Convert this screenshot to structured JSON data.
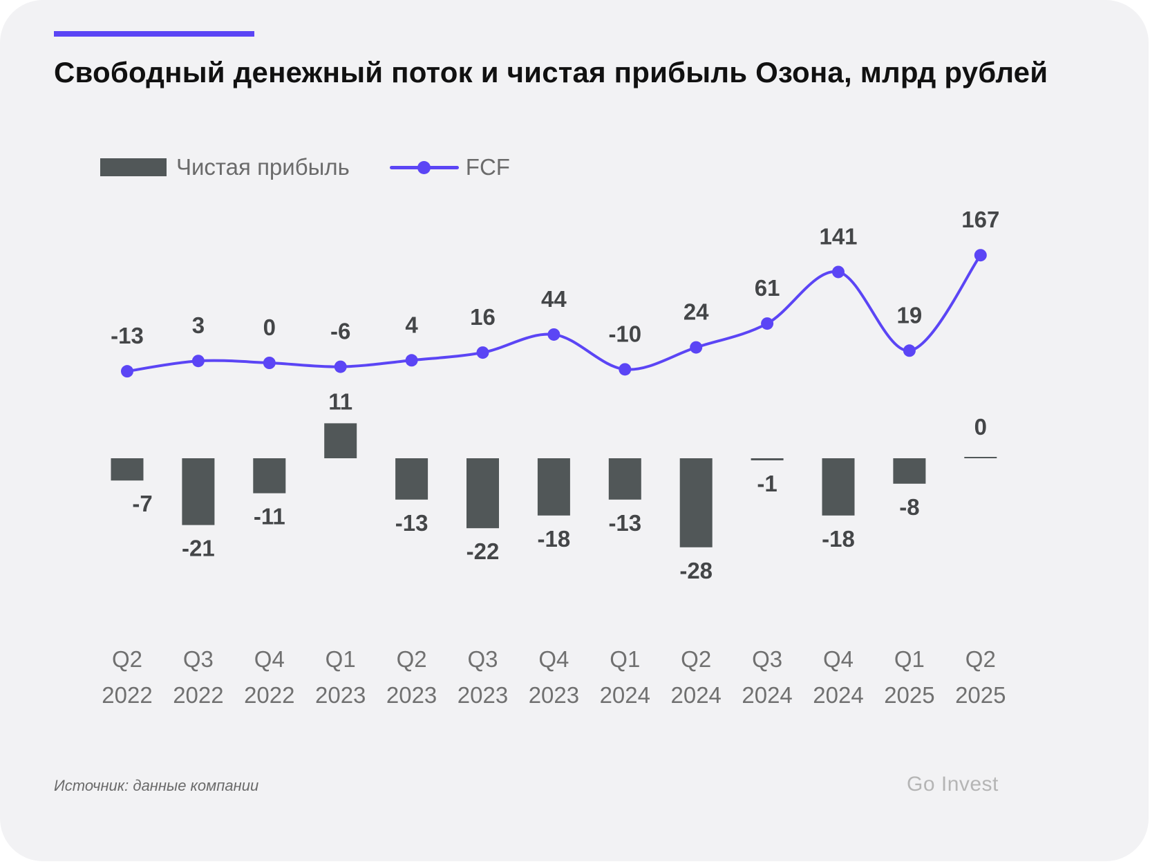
{
  "title": "Свободный денежный поток и чистая прибыль Озона, млрд рублей",
  "legend": {
    "net_profit": "Чистая прибыль",
    "fcf": "FCF"
  },
  "colors": {
    "accent": "#5b45f5",
    "bar": "#515758",
    "background": "#f2f2f4",
    "value_label": "#444648",
    "tick_label": "#707070"
  },
  "source": "Источник: данные компании",
  "brand": "Go Invest",
  "chart_data": {
    "type": "bar+line",
    "title": "Свободный денежный поток и чистая прибыль Озона, млрд рублей",
    "xlabel": "",
    "ylabel": "",
    "grid": false,
    "legend_position": "top-left",
    "categories": [
      {
        "quarter": "Q2",
        "year": "2022"
      },
      {
        "quarter": "Q3",
        "year": "2022"
      },
      {
        "quarter": "Q4",
        "year": "2022"
      },
      {
        "quarter": "Q1",
        "year": "2023"
      },
      {
        "quarter": "Q2",
        "year": "2023"
      },
      {
        "quarter": "Q3",
        "year": "2023"
      },
      {
        "quarter": "Q4",
        "year": "2023"
      },
      {
        "quarter": "Q1",
        "year": "2024"
      },
      {
        "quarter": "Q2",
        "year": "2024"
      },
      {
        "quarter": "Q3",
        "year": "2024"
      },
      {
        "quarter": "Q4",
        "year": "2024"
      },
      {
        "quarter": "Q1",
        "year": "2025"
      },
      {
        "quarter": "Q2",
        "year": "2025"
      }
    ],
    "series": [
      {
        "name": "Чистая прибыль",
        "type": "bar",
        "values": [
          -7,
          -21,
          -11,
          11,
          -13,
          -22,
          -18,
          -13,
          -28,
          -1,
          -18,
          -8,
          0
        ],
        "labels": [
          "-7",
          "-21",
          "-11",
          "11",
          "-13",
          "-22",
          "-18",
          "-13",
          "-28",
          "-1",
          "-18",
          "-8",
          "0"
        ]
      },
      {
        "name": "FCF",
        "type": "line",
        "smooth": true,
        "values": [
          -13,
          3,
          0,
          -6,
          4,
          16,
          44,
          -10,
          24,
          61,
          141,
          19,
          167
        ],
        "labels": [
          "-13",
          "3",
          "0",
          "-6",
          "4",
          "16",
          "44",
          "-10",
          "24",
          "61",
          "141",
          "19",
          "167"
        ]
      }
    ]
  }
}
